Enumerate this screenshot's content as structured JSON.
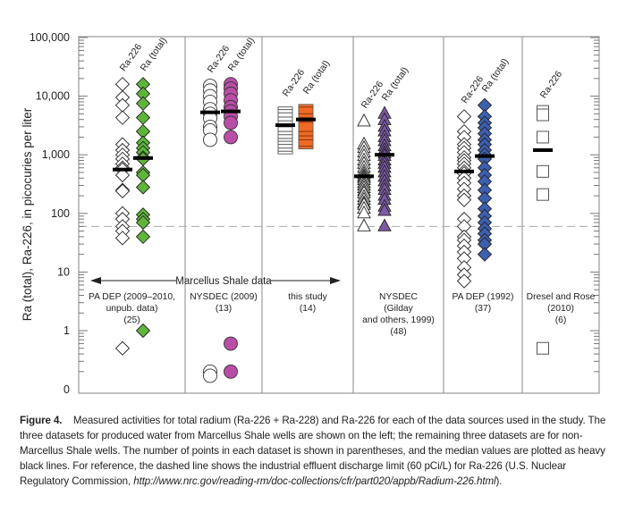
{
  "chart_data": {
    "type": "scatter",
    "title": "",
    "ylabel": "Ra (total), Ra-226, in picocuries per liter",
    "xlabel": "",
    "yscale": "log",
    "ylim": [
      0,
      100000
    ],
    "yticks": [
      {
        "value": 0,
        "label": "0"
      },
      {
        "value": 1,
        "label": "1"
      },
      {
        "value": 10,
        "label": "10"
      },
      {
        "value": 100,
        "label": "100"
      },
      {
        "value": 1000,
        "label": "1,000"
      },
      {
        "value": 10000,
        "label": "10,000"
      },
      {
        "value": 100000,
        "label": "100,000"
      }
    ],
    "reference_line": {
      "value": 60,
      "label": "industrial effluent discharge limit (60 pCi/L)",
      "style": "dashed",
      "color": "#aaaaaa"
    },
    "marcellus_annotation": "Marcellus Shale data",
    "groups": [
      {
        "name": "PA DEP (2009–2010, unpub. data)",
        "label_lines": [
          "PA DEP (2009–2010,",
          "unpub. data)",
          "(25)"
        ],
        "n": 25,
        "marker": "diamond",
        "series": [
          {
            "name": "Ra-226",
            "fill": "#ffffff",
            "values": [
              16000,
              9500,
              7000,
              4300,
              1500,
              1200,
              1000,
              850,
              700,
              600,
              560,
              450,
              250,
              240,
              100,
              80,
              60,
              50,
              38,
              0.5
            ],
            "median": 560
          },
          {
            "name": "Ra (total)",
            "fill": "#5fb53a",
            "values": [
              16000,
              11000,
              7500,
              4300,
              2500,
              1600,
              1300,
              1100,
              900,
              850,
              500,
              450,
              280,
              95,
              80,
              70,
              40,
              1.0
            ],
            "median": 880
          }
        ]
      },
      {
        "name": "NYSDEC (2009)",
        "label_lines": [
          "NYSDEC (2009)",
          "(13)"
        ],
        "n": 13,
        "marker": "circle",
        "series": [
          {
            "name": "Ra-226",
            "fill": "#ffffff",
            "values": [
              15000,
              12500,
              10000,
              8000,
              6000,
              5000,
              4200,
              3000,
              2600,
              1800,
              0.2,
              0.17
            ],
            "median": 5300
          },
          {
            "name": "Ra (total)",
            "fill": "#b94ea6",
            "values": [
              16000,
              13500,
              11000,
              8500,
              6500,
              5500,
              4500,
              3500,
              2000,
              0.6,
              0.2
            ],
            "median": 5500
          }
        ]
      },
      {
        "name": "this study",
        "label_lines": [
          "this study",
          "(14)"
        ],
        "n": 14,
        "marker": "square-bar",
        "series": [
          {
            "name": "Ra-226",
            "fill": "#ffffff",
            "values": [
              5900,
              5200,
              4400,
              3800,
              3000,
              2500,
              2200,
              1900,
              1700,
              1500,
              1300,
              1150
            ],
            "median": 3200
          },
          {
            "name": "Ra (total)",
            "fill": "#f06a24",
            "values": [
              6500,
              5000,
              4300,
              3600,
              2500,
              2100,
              1800,
              1400
            ],
            "median": 4000
          }
        ]
      },
      {
        "name": "NYSDEC (Gilday and others, 1999)",
        "label_lines": [
          "NYSDEC",
          "(Gilday",
          "and others, 1999)",
          "(48)"
        ],
        "n": 48,
        "marker": "triangle",
        "series": [
          {
            "name": "Ra-226",
            "fill": "#ffffff",
            "values": [
              3700,
              1500,
              1300,
              1100,
              950,
              800,
              700,
              600,
              520,
              470,
              430,
              400,
              370,
              330,
              300,
              270,
              240,
              220,
              190,
              170,
              150,
              140,
              120,
              100,
              60
            ],
            "median": 430
          },
          {
            "name": "Ra (total)",
            "fill": "#7b5aa6",
            "values": [
              5000,
              3900,
              3000,
              2500,
              2000,
              1700,
              1400,
              1200,
              1050,
              950,
              800,
              700,
              600,
              500,
              420,
              350,
              290,
              250,
              200,
              170,
              130,
              110,
              60
            ],
            "median": 1000
          }
        ]
      },
      {
        "name": "PA DEP (1992)",
        "label_lines": [
          "PA DEP (1992)",
          "(37)"
        ],
        "n": 37,
        "marker": "diamond",
        "series": [
          {
            "name": "Ra-226",
            "fill": "#ffffff",
            "values": [
              4500,
              2500,
              2000,
              1500,
              1300,
              1100,
              900,
              800,
              700,
              600,
              520,
              480,
              400,
              330,
              260,
              200,
              170,
              80,
              60,
              40,
              35,
              28,
              22,
              17,
              12,
              9,
              7
            ],
            "median": 520
          },
          {
            "name": "Ra (total)",
            "fill": "#3c5fae",
            "values": [
              7000,
              4500,
              3500,
              2900,
              2300,
              1800,
              1500,
              1200,
              1000,
              850,
              600,
              450,
              350,
              250,
              180,
              120,
              90,
              70,
              55,
              45,
              35,
              30,
              20
            ],
            "median": 950
          }
        ]
      },
      {
        "name": "Dresel and Rose (2010)",
        "label_lines": [
          "Dresel and Rose",
          "(2010)",
          "(6)"
        ],
        "n": 6,
        "marker": "square",
        "series": [
          {
            "name": "Ra-226",
            "fill": "#ffffff",
            "values": [
              5500,
              4800,
              2000,
              520,
              210,
              0.5
            ],
            "median": 1200
          }
        ]
      }
    ]
  },
  "caption": {
    "figure_label": "Figure 4.",
    "text_1": "Measured activities for total radium (Ra-226 + Ra-228) and Ra-226 for each of the data sources used in the study. The three datasets for produced water from Marcellus Shale wells are shown on the left; the remaining three datasets are for non-Marcellus Shale wells. The number of points in each dataset is shown in parentheses, and the median values are plotted as heavy black lines. For reference, the dashed line shows the industrial effluent discharge limit (60 pCi/L) for Ra-226 (U.S. Nuclear Regulatory Commission, ",
    "link": "http://www.nrc.gov/reading-rm/doc-collections/cfr/part020/appb/Radium-226.html",
    "text_2": ")."
  }
}
